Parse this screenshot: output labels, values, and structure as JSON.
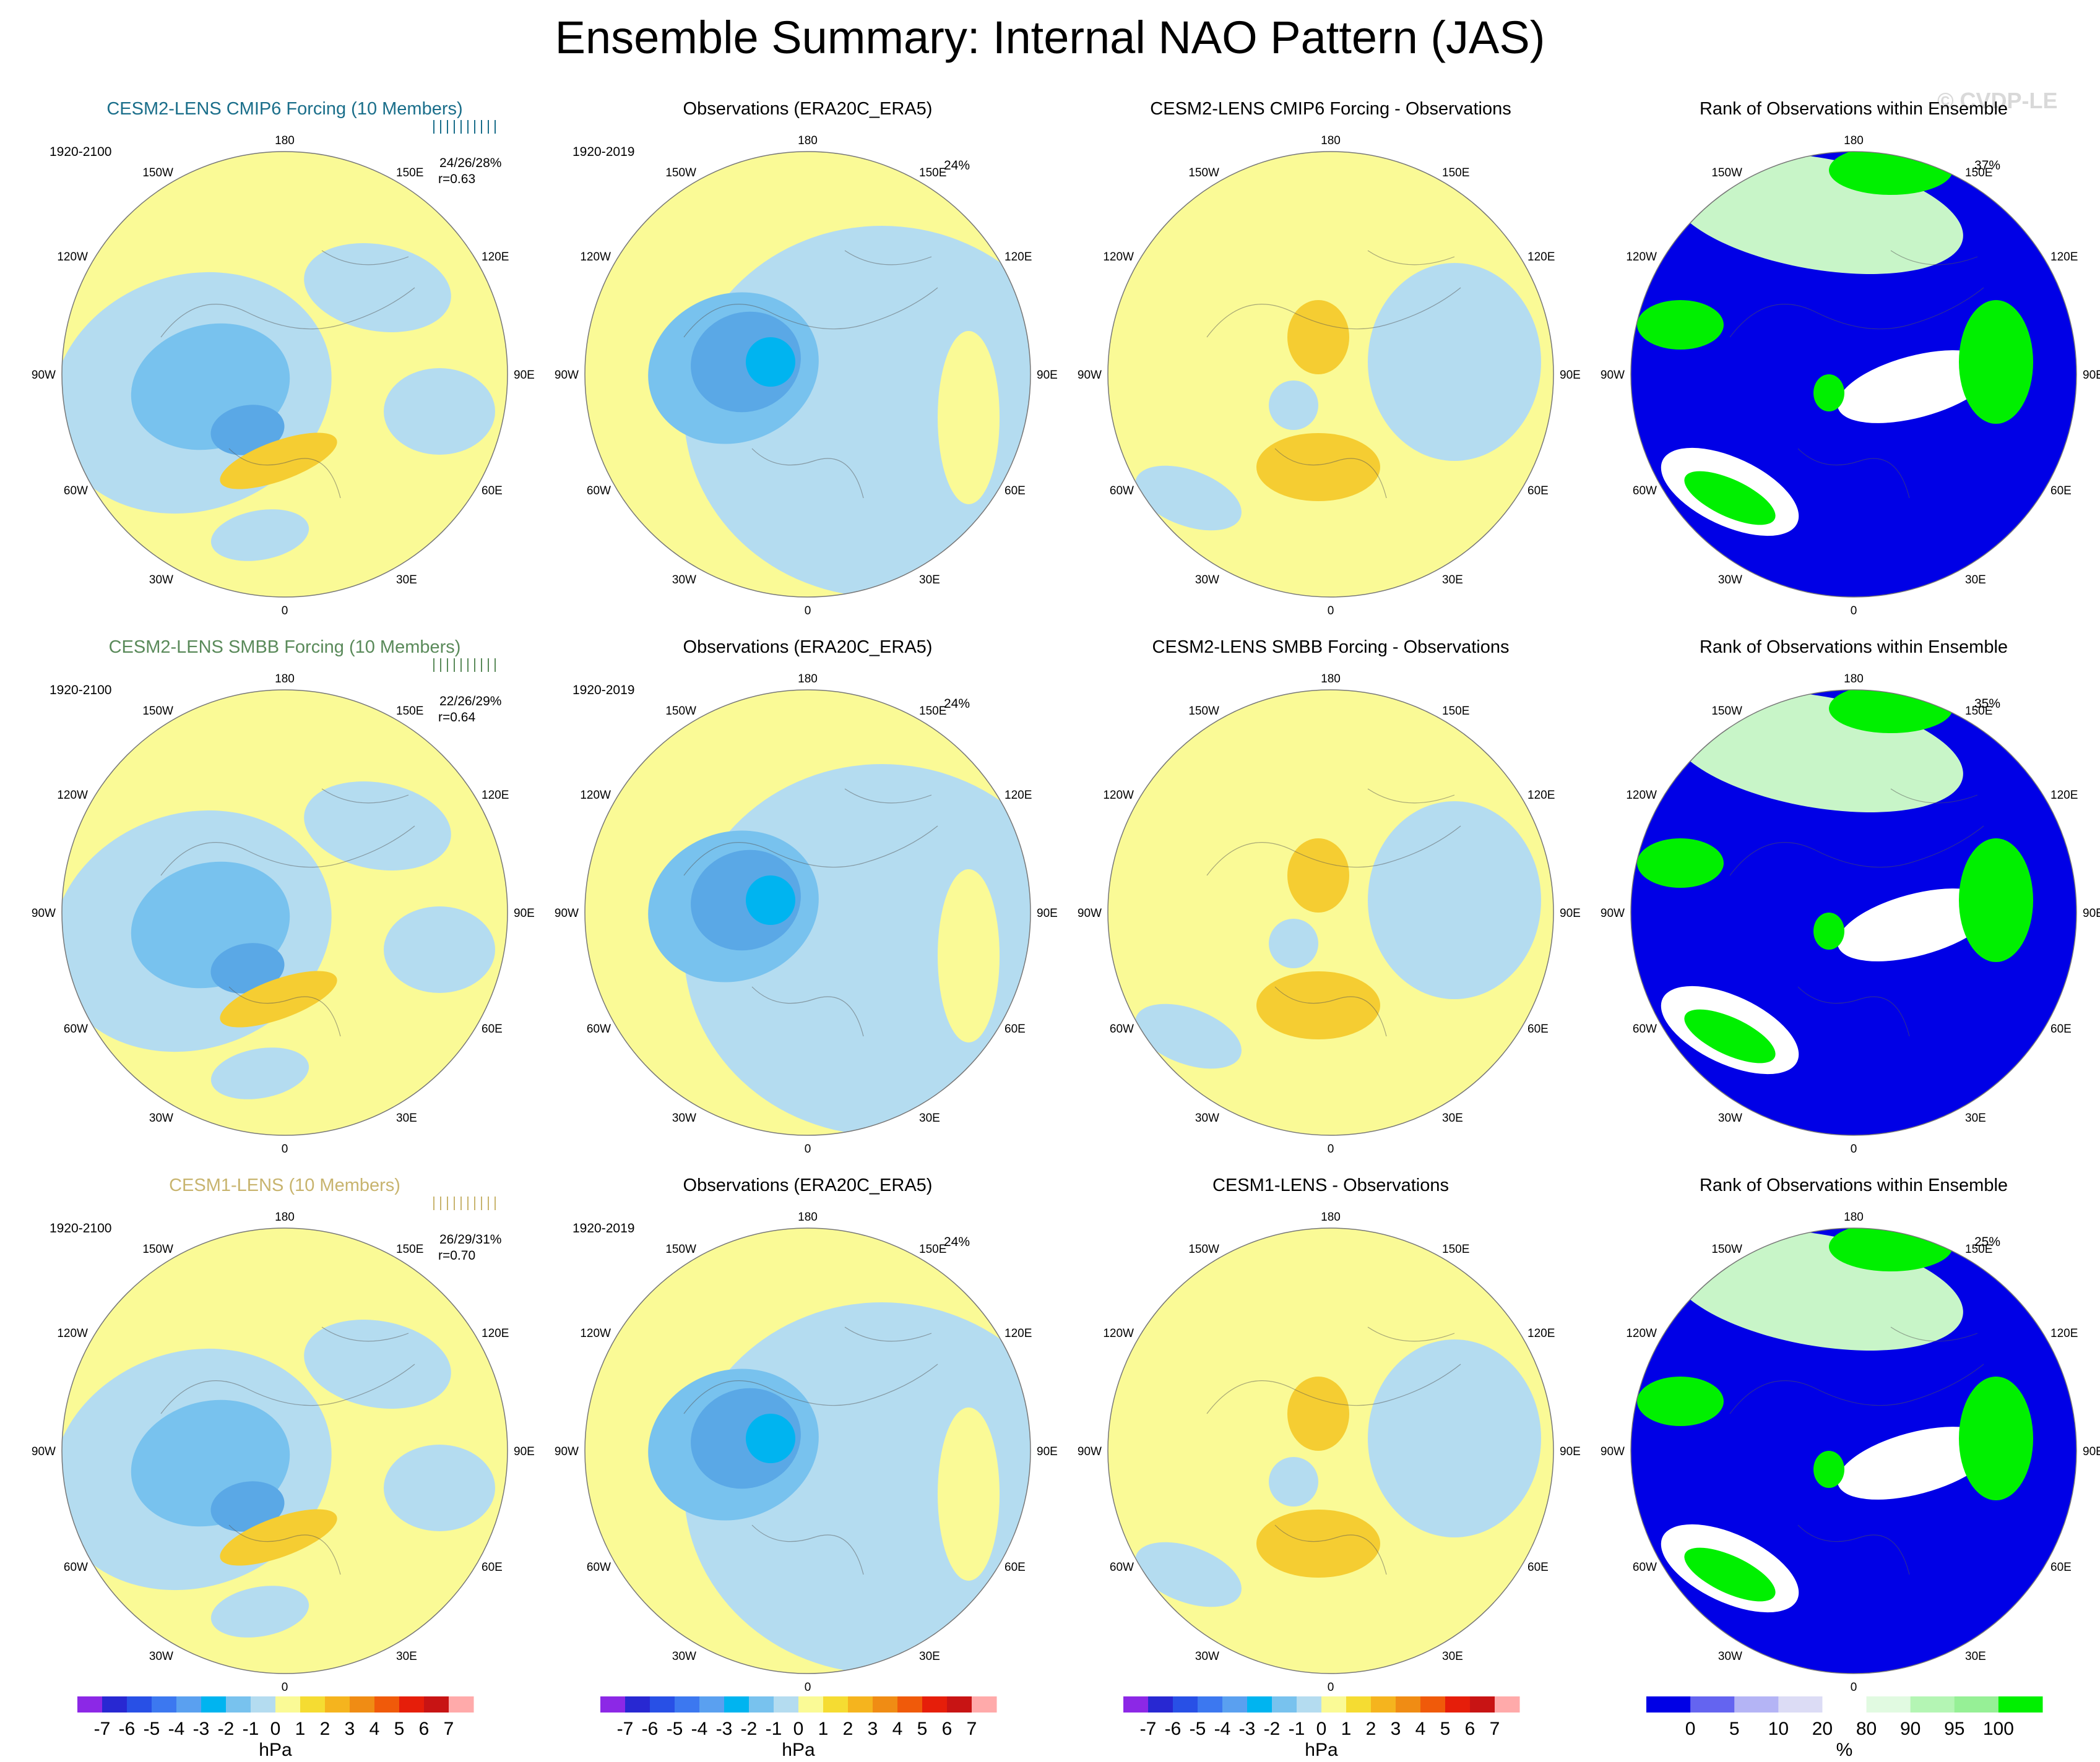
{
  "title": "Ensemble Summary: Internal NAO Pattern (JAS)",
  "watermark": "© CVDP-LE",
  "colors": {
    "neg1": "#b4dcf0",
    "neg2": "#78c2ee",
    "neg3": "#5aa8e6",
    "neg4": "#00b4f0",
    "pos1": "#fafa96",
    "pos2": "#f5cd32",
    "pos3": "#f0a01e",
    "rank_low": "#0000e6",
    "rank_mid": "#ffffff",
    "rank_light": "#c8f5c8",
    "rank_high": "#00f000",
    "row1_title": "#1a6e8a",
    "row2_title": "#5a8a5a",
    "row3_title": "#c8b46e"
  },
  "map_labels": {
    "lon180": "180",
    "lon150w": "150W",
    "lon150e": "150E",
    "lon120w": "120W",
    "lon120e": "120E",
    "lon90w": "90W",
    "lon90e": "90E",
    "lon60w": "60W",
    "lon60e": "60E",
    "lon30w": "30W",
    "lon30e": "30E",
    "lon0": "0"
  },
  "rows": [
    {
      "model": {
        "title": "CESM2-LENS CMIP6 Forcing (10 Members)",
        "period": "1920-2100",
        "pct": "24/26/28%",
        "r": "r=0.63"
      },
      "obs": {
        "title": "Observations (ERA20C_ERA5)",
        "period": "1920-2019",
        "pct": "24%"
      },
      "diff": {
        "title": "CESM2-LENS CMIP6 Forcing - Observations"
      },
      "rank": {
        "title": "Rank of Observations within Ensemble",
        "pct": "37%"
      }
    },
    {
      "model": {
        "title": "CESM2-LENS SMBB Forcing (10 Members)",
        "period": "1920-2100",
        "pct": "22/26/29%",
        "r": "r=0.64"
      },
      "obs": {
        "title": "Observations (ERA20C_ERA5)",
        "period": "1920-2019",
        "pct": "24%"
      },
      "diff": {
        "title": "CESM2-LENS SMBB Forcing - Observations"
      },
      "rank": {
        "title": "Rank of Observations within Ensemble",
        "pct": "35%"
      }
    },
    {
      "model": {
        "title": "CESM1-LENS (10 Members)",
        "period": "1920-2100",
        "pct": "26/29/31%",
        "r": "r=0.70"
      },
      "obs": {
        "title": "Observations (ERA20C_ERA5)",
        "period": "1920-2019",
        "pct": "24%"
      },
      "diff": {
        "title": "CESM1-LENS - Observations"
      },
      "rank": {
        "title": "Rank of Observations within Ensemble",
        "pct": "25%"
      }
    }
  ],
  "chart_data": {
    "type": "heatmap",
    "description_type": "polar stereographic maps of sea level pressure anomaly",
    "hpa_colorbar": {
      "unit": "hPa",
      "levels": [
        -7,
        -6,
        -5,
        -4,
        -3,
        -2,
        -1,
        0,
        1,
        2,
        3,
        4,
        5,
        6,
        7
      ],
      "labels": [
        "-7",
        "-6",
        "-5",
        "-4",
        "-3",
        "-2",
        "-1",
        "0",
        "1",
        "2",
        "3",
        "4",
        "5",
        "6",
        "7"
      ],
      "colors": [
        "#8c28e6",
        "#2828d2",
        "#2850e6",
        "#3c78f0",
        "#5aa0f0",
        "#00b4f0",
        "#78c2ee",
        "#b4dcf0",
        "#fafa96",
        "#f5dc32",
        "#f5b41e",
        "#f08c14",
        "#f05a0a",
        "#e61e0a",
        "#c81414",
        "#ffaaaa"
      ]
    },
    "rank_colorbar": {
      "unit": "%",
      "levels": [
        0,
        5,
        10,
        20,
        80,
        90,
        95,
        100
      ],
      "labels": [
        "0",
        "5",
        "10",
        "20",
        "80",
        "90",
        "95",
        "100"
      ],
      "colors": [
        "#0000e6",
        "#6464f0",
        "#b4b4f5",
        "#dcdcf5",
        "#ffffff",
        "#e1fae1",
        "#b4f5b4",
        "#96f096",
        "#00f000"
      ]
    }
  }
}
